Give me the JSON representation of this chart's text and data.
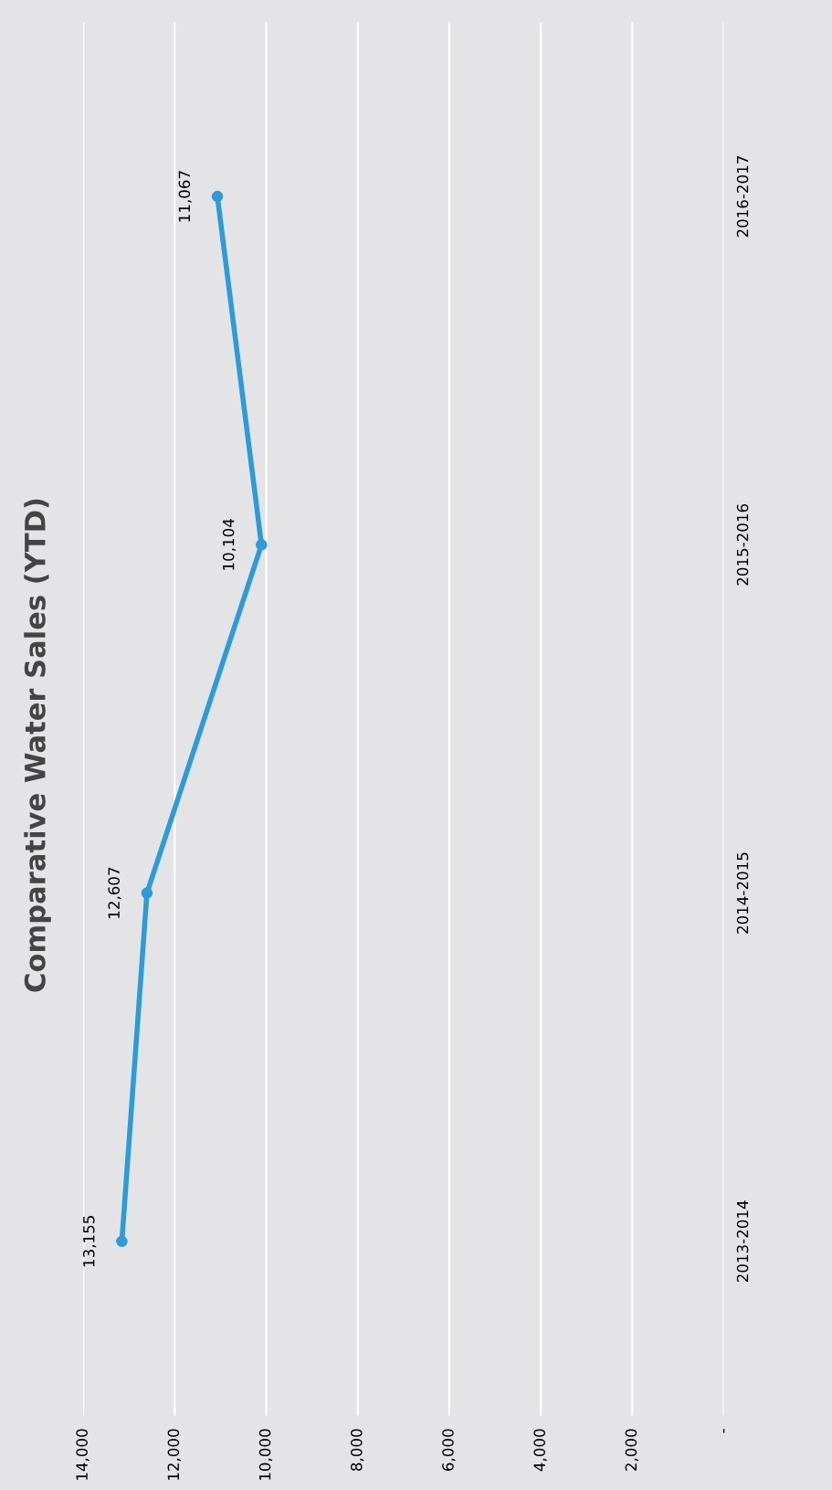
{
  "chart_data": {
    "type": "line",
    "title": "Comparative Water Sales (YTD)",
    "orientation": "horizontal",
    "categories": [
      "2016-2017",
      "2015-2016",
      "2014-2015",
      "2013-2014"
    ],
    "series": [
      {
        "color": "#2b9cd8",
        "values": [
          11067,
          10104,
          12607,
          13155
        ],
        "value_labels": [
          "11,067",
          "10,104",
          "12,607",
          "13,155"
        ]
      }
    ],
    "xlim": [
      14000,
      0
    ],
    "xticks": [
      {
        "value": 0,
        "label": "-"
      },
      {
        "value": 2000,
        "label": "2,000"
      },
      {
        "value": 4000,
        "label": "4,000"
      },
      {
        "value": 6000,
        "label": "6,000"
      },
      {
        "value": 8000,
        "label": "8,000"
      },
      {
        "value": 10000,
        "label": "10,000"
      },
      {
        "value": 12000,
        "label": "12,000"
      },
      {
        "value": 14000,
        "label": "14,000"
      }
    ],
    "grid": "x",
    "marker": "circle",
    "line_style": "solid"
  }
}
